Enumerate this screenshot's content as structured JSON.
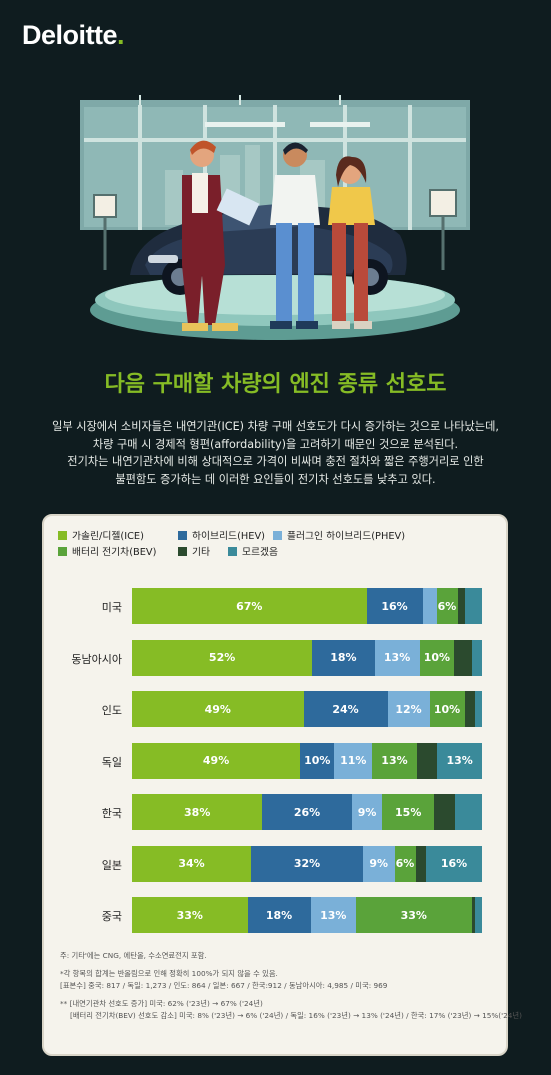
{
  "logo": {
    "text": "Deloitte",
    "dot": "."
  },
  "headline": "다음 구매할 차량의 엔진 종류 선호도",
  "intro_lines": [
    "일부 시장에서 소비자들은 내연기관(ICE) 차량 구매 선호도가 다시 증가하는 것으로 나타났는데,",
    "차량 구매 시 경제적 형편(affordability)을 고려하기 때문인 것으로 분석된다.",
    "전기차는 내연기관차에 비해 상대적으로 가격이 비싸며 충전 절차와 짧은 주행거리로 인한",
    "불편함도 증가하는 데 이러한 요인들이 전기차 선호도를 낮추고 있다."
  ],
  "chart_data": {
    "type": "bar",
    "orientation": "horizontal-stacked-100",
    "categories": [
      "미국",
      "동남아시아",
      "인도",
      "독일",
      "한국",
      "일본",
      "중국"
    ],
    "series": [
      {
        "name": "가솔린/디젤(ICE)",
        "color": "#86bc25",
        "values": [
          67,
          52,
          49,
          49,
          38,
          34,
          33
        ]
      },
      {
        "name": "하이브리드(HEV)",
        "color": "#2e6a9c",
        "values": [
          16,
          18,
          24,
          10,
          26,
          32,
          18
        ]
      },
      {
        "name": "플러그인 하이브리드(PHEV)",
        "color": "#7ab0d8",
        "values": [
          4,
          13,
          12,
          11,
          9,
          9,
          13
        ]
      },
      {
        "name": "배터리 전기차(BEV)",
        "color": "#5aa33a",
        "values": [
          6,
          10,
          10,
          13,
          15,
          6,
          33
        ]
      },
      {
        "name": "기타",
        "color": "#2b4a2e",
        "values": [
          2,
          5,
          3,
          6,
          6,
          3,
          1
        ]
      },
      {
        "name": "모르겠음",
        "color": "#3a8a9a",
        "values": [
          5,
          3,
          2,
          13,
          8,
          16,
          2
        ]
      }
    ],
    "data_labels": [
      [
        "67%",
        "16%",
        "",
        "6%",
        "",
        ""
      ],
      [
        "52%",
        "18%",
        "13%",
        "10%",
        "",
        ""
      ],
      [
        "49%",
        "24%",
        "12%",
        "10%",
        "",
        ""
      ],
      [
        "49%",
        "10%",
        "11%",
        "13%",
        "",
        "13%"
      ],
      [
        "38%",
        "26%",
        "9%",
        "15%",
        "",
        ""
      ],
      [
        "34%",
        "32%",
        "9%",
        "6%",
        "",
        "16%"
      ],
      [
        "33%",
        "18%",
        "13%",
        "33%",
        "",
        ""
      ]
    ],
    "legend_placement": "top"
  },
  "notes": [
    "주: 기타'에는 CNG, 에탄올, 수소연료전지 포함.",
    "*각 항목의 합계는 반올림으로 인해 정확히 100%가 되지 않을 수 있음.",
    "[표본수] 중국: 817 / 독일: 1,273 / 인도: 864 / 일본: 667 / 한국:912 / 동남아시아: 4,985 / 미국: 969",
    "** [내연기관차 선호도 증가] 미국: 62% ('23년) → 67% ('24년)",
    "[배터리 전기차(BEV) 선호도 감소] 미국: 8% ('23년) → 6% ('24년) / 독일: 16% ('23년) → 13% ('24년) / 한국: 17% ('23년) → 15%('24년)"
  ]
}
